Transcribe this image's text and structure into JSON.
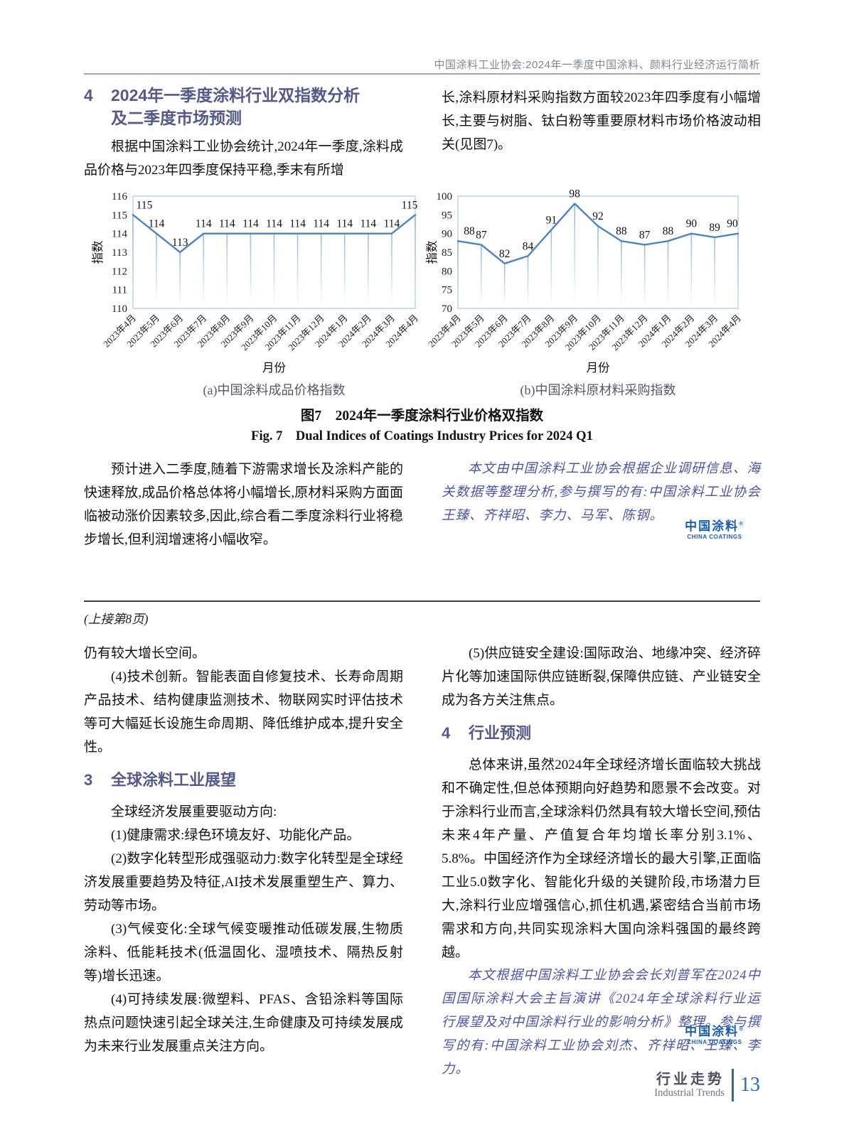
{
  "page": {
    "header": "中国涂料工业协会:2024年一季度中国涂料、颜料行业经济运行简析",
    "continued_note": "(上接第8页)",
    "footer": {
      "section_cn": "行业走势",
      "section_en": "Industrial Trends",
      "page_number": "13"
    },
    "logo": {
      "name_cn": "中国涂料",
      "mark": "®",
      "name_en": "CHINA COATINGS"
    }
  },
  "article1": {
    "heading": {
      "num": "4",
      "line1": "2024年一季度涂料行业双指数分析",
      "line2": "及二季度市场预测"
    },
    "para_left": "根据中国涂料工业协会统计,2024年一季度,涂料成品价格与2023年四季度保持平稳,季末有所增",
    "para_right": "长,涂料原材料采购指数方面较2023年四季度有小幅增长,主要与树脂、钛白粉等重要原材料市场价格波动相关(见图7)。",
    "para2_left": "预计进入二季度,随着下游需求增长及涂料产能的快速释放,成品价格总体将小幅增长,原材料采购方面面临被动涨价因素较多,因此,综合看二季度涂料行业将稳步增长,但利润增速将小幅收窄。",
    "authors_note": "本文由中国涂料工业协会根据企业调研信息、海关数据等整理分析,参与撰写的有:中国涂料工业协会王臻、齐祥昭、李力、马军、陈钢。"
  },
  "figure": {
    "caption_cn": "图7　2024年一季度涂料行业价格双指数",
    "caption_en": "Fig. 7　Dual Indices of Coatings Industry Prices for 2024 Q1",
    "sub_a": "(a)中国涂料成品价格指数",
    "sub_b": "(b)中国涂料原材料采购指数"
  },
  "chart_data": [
    {
      "type": "line",
      "title": "(a)中国涂料成品价格指数",
      "xlabel": "月份",
      "ylabel": "指数",
      "categories": [
        "2023年4月",
        "2023年5月",
        "2023年6月",
        "2023年7月",
        "2023年8月",
        "2023年9月",
        "2023年10月",
        "2023年11月",
        "2023年12月",
        "2024年1月",
        "2024年2月",
        "2024年3月",
        "2024年4月"
      ],
      "values": [
        115,
        114,
        113,
        114,
        114,
        114,
        114,
        114,
        114,
        114,
        114,
        114,
        115
      ],
      "ylim": [
        110,
        116
      ],
      "ytick_step": 1,
      "grid": false,
      "drop_lines": true,
      "data_labels": true,
      "legend": "none",
      "line_color": "#4d83c1"
    },
    {
      "type": "line",
      "title": "(b)中国涂料原材料采购指数",
      "xlabel": "月份",
      "ylabel": "指数",
      "categories": [
        "2023年4月",
        "2023年5月",
        "2023年6月",
        "2023年7月",
        "2023年8月",
        "2023年9月",
        "2023年10月",
        "2023年11月",
        "2023年12月",
        "2024年1月",
        "2024年2月",
        "2024年3月",
        "2024年4月"
      ],
      "values": [
        88,
        87,
        82,
        84,
        91,
        98,
        92,
        88,
        87,
        88,
        90,
        89,
        90
      ],
      "ylim": [
        70,
        100
      ],
      "ytick_step": 5,
      "grid": false,
      "drop_lines": true,
      "data_labels": true,
      "legend": "none",
      "line_color": "#4d83c1"
    }
  ],
  "article2": {
    "left_paras": [
      "仍有较大增长空间。",
      "(4)技术创新。智能表面自修复技术、长寿命周期产品技术、结构健康监测技术、物联网实时评估技术等可大幅延长设施生命周期、降低维护成本,提升安全性。",
      "全球经济发展重要驱动方向:",
      "(1)健康需求:绿色环境友好、功能化产品。",
      "(2)数字化转型形成强驱动力:数字化转型是全球经济发展重要趋势及特征,AI技术发展重塑生产、算力、劳动等市场。",
      "(3)气候变化:全球气候变暖推动低碳发展,生物质涂料、低能耗技术(低温固化、湿喷技术、隔热反射等)增长迅速。",
      "(4)可持续发展:微塑料、PFAS、含铅涂料等国际热点问题快速引起全球关注,生命健康及可持续发展成为未来行业发展重点关注方向。"
    ],
    "heading3": {
      "num": "3",
      "title": "全球涂料工业展望"
    },
    "right_paras": [
      "(5)供应链安全建设:国际政治、地缘冲突、经济碎片化等加速国际供应链断裂,保障供应链、产业链安全成为各方关注焦点。",
      "总体来讲,虽然2024年全球经济增长面临较大挑战和不确定性,但总体预期向好趋势和愿景不会改变。对于涂料行业而言,全球涂料仍然具有较大增长空间,预估未来4年产量、产值复合年均增长率分别3.1%、5.8%。中国经济作为全球经济增长的最大引擎,正面临工业5.0数字化、智能化升级的关键阶段,市场潜力巨大,涂料行业应增强信心,抓住机遇,紧密结合当前市场需求和方向,共同实现涂料大国向涂料强国的最终跨越。"
    ],
    "heading4": {
      "num": "4",
      "title": "行业预测"
    },
    "closing_note": "本文根据中国涂料工业协会会长刘普军在2024中国国际涂料大会主旨演讲《2024年全球涂料行业运行展望及对中国涂料行业的影响分析》整理。参与撰写的有:中国涂料工业协会刘杰、齐祥昭、王臻、李力。"
  }
}
